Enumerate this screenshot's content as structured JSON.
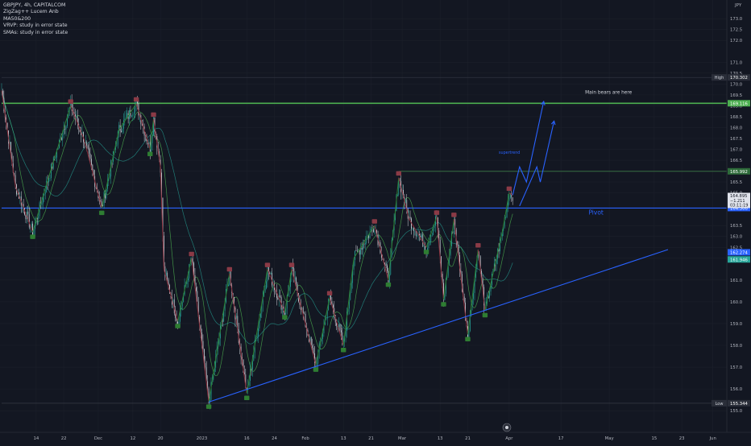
{
  "chart_data": {
    "type": "candlestick",
    "symbol_line": "GBPJPY, 4h, CAPITALCOM",
    "indicators": [
      "ZigZag++ Lucem Anb",
      "MA50&200",
      "VRVP: study in error state",
      "SMAs: study in error state"
    ],
    "currency": "JPY",
    "ylim": [
      154.5,
      173.5
    ],
    "y_ticks": [
      155.0,
      156.0,
      157.0,
      158.0,
      159.0,
      160.0,
      161.0,
      162.0,
      162.5,
      163.0,
      163.5,
      165.0,
      165.5,
      166.0,
      166.5,
      167.0,
      167.5,
      168.0,
      168.5,
      169.0,
      169.5,
      170.0,
      170.5,
      171.0,
      172.0,
      172.5,
      173.0
    ],
    "x_labels": [
      {
        "label": "14",
        "idx": 10
      },
      {
        "label": "22",
        "idx": 18
      },
      {
        "label": "Dec",
        "idx": 28
      },
      {
        "label": "12",
        "idx": 38
      },
      {
        "label": "20",
        "idx": 46
      },
      {
        "label": "2023",
        "idx": 58
      },
      {
        "label": "16",
        "idx": 71
      },
      {
        "label": "24",
        "idx": 79
      },
      {
        "label": "Feb",
        "idx": 88
      },
      {
        "label": "13",
        "idx": 99
      },
      {
        "label": "21",
        "idx": 107
      },
      {
        "label": "Mar",
        "idx": 116
      },
      {
        "label": "13",
        "idx": 127
      },
      {
        "label": "21",
        "idx": 135
      },
      {
        "label": "Apr",
        "idx": 147
      },
      {
        "label": "17",
        "idx": 162
      },
      {
        "label": "May",
        "idx": 176
      },
      {
        "label": "15",
        "idx": 189
      },
      {
        "label": "23",
        "idx": 197
      },
      {
        "label": "Jun",
        "idx": 206
      }
    ],
    "n_slots": 210,
    "price_path": [
      [
        0,
        169.7
      ],
      [
        4,
        165.3
      ],
      [
        9,
        163.2
      ],
      [
        13,
        165.4
      ],
      [
        20,
        169.0
      ],
      [
        24,
        167.4
      ],
      [
        29,
        164.3
      ],
      [
        34,
        167.9
      ],
      [
        39,
        169.1
      ],
      [
        43,
        167.0
      ],
      [
        44,
        168.4
      ],
      [
        46,
        166.2
      ],
      [
        47,
        161.5
      ],
      [
        51,
        159.1
      ],
      [
        55,
        162.0
      ],
      [
        60,
        155.4
      ],
      [
        66,
        161.3
      ],
      [
        71,
        155.8
      ],
      [
        77,
        161.5
      ],
      [
        82,
        159.5
      ],
      [
        84,
        161.5
      ],
      [
        91,
        157.1
      ],
      [
        95,
        160.2
      ],
      [
        99,
        158.0
      ],
      [
        102,
        162.0
      ],
      [
        108,
        163.5
      ],
      [
        112,
        161.0
      ],
      [
        115,
        165.7
      ],
      [
        118,
        163.8
      ],
      [
        123,
        162.5
      ],
      [
        126,
        163.9
      ],
      [
        128,
        160.1
      ],
      [
        131,
        163.8
      ],
      [
        135,
        158.5
      ],
      [
        138,
        162.4
      ],
      [
        140,
        159.6
      ],
      [
        143,
        161.8
      ],
      [
        145,
        163.2
      ],
      [
        147,
        165.0
      ],
      [
        148,
        164.9
      ]
    ],
    "price_labels": [
      {
        "text": "High",
        "value": "170.302",
        "price": 170.302,
        "color": "#2a2e39"
      },
      {
        "text": "",
        "value": "169.116",
        "price": 169.116,
        "color": "#4caf50"
      },
      {
        "text": "",
        "value": "165.992",
        "price": 165.992,
        "color": "#2e6b3a"
      },
      {
        "text": "",
        "value": "164.306",
        "price": 164.306,
        "color": "#2962ff"
      },
      {
        "text": "",
        "value": "162.274",
        "price": 162.274,
        "color": "#2962ff"
      },
      {
        "text": "",
        "value": "161.946",
        "price": 161.946,
        "color": "#26a69a"
      },
      {
        "text": "Low",
        "value": "155.344",
        "price": 155.344,
        "color": "#2a2e39"
      }
    ],
    "price_tag": {
      "value": "164.895",
      "sub1": "−1.211",
      "sub2": "03:11:19",
      "price": 164.895
    },
    "horizontal_levels": [
      {
        "price": 169.116,
        "color": "#4caf50",
        "from_idx": 0,
        "width": 1.6
      },
      {
        "price": 165.992,
        "color": "#3d7a46",
        "from_idx": 115,
        "width": 0.9
      },
      {
        "price": 164.306,
        "color": "#2962ff",
        "from_idx": 0,
        "width": 1.1
      },
      {
        "price": 170.302,
        "color": "#363a45",
        "from_idx": 0,
        "width": 0.7
      },
      {
        "price": 155.344,
        "color": "#363a45",
        "from_idx": 0,
        "width": 0.7
      }
    ],
    "trendline": {
      "from": [
        60,
        155.4
      ],
      "to": [
        193,
        162.4
      ],
      "color": "#2962ff"
    },
    "annotations": {
      "bears": {
        "text": "Main bears are here",
        "idx": 169,
        "price": 169.55
      },
      "supertrend": {
        "text": "supertrend",
        "idx": 144,
        "price": 166.8
      },
      "pivot": {
        "text": "Pivot",
        "idx": 170,
        "price": 164.0
      }
    },
    "forecast_arrows": [
      [
        [
          148,
          164.9
        ],
        [
          150,
          166.2
        ],
        [
          152,
          165.5
        ],
        [
          157,
          169.2
        ]
      ],
      [
        [
          150,
          164.4
        ],
        [
          155,
          166.2
        ],
        [
          156,
          165.5
        ],
        [
          160,
          168.3
        ]
      ]
    ]
  }
}
